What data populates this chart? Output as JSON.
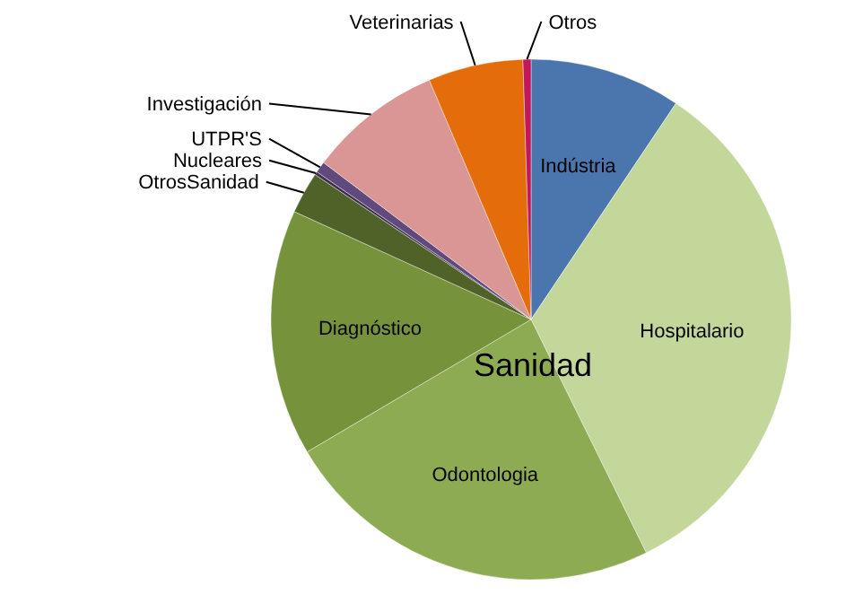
{
  "chart_data": {
    "type": "pie",
    "categories": [
      "Indústria",
      "Hospitalario",
      "Odontologia",
      "Diagnóstico",
      "OtrosSanidad",
      "Nucleares",
      "UTPR'S",
      "Investigación",
      "Veterinarias",
      "Otros"
    ],
    "values": [
      9.4,
      33.3,
      23.8,
      15.3,
      2.6,
      0.2,
      0.7,
      8.3,
      5.9,
      0.5
    ],
    "colors": [
      "#4a76ad",
      "#c4d79b",
      "#8dab52",
      "#76933c",
      "#4f6228",
      "#403151",
      "#604a7b",
      "#d99694",
      "#e46c0a",
      "#c0185a"
    ],
    "annotations": [
      "Sanidad"
    ]
  }
}
